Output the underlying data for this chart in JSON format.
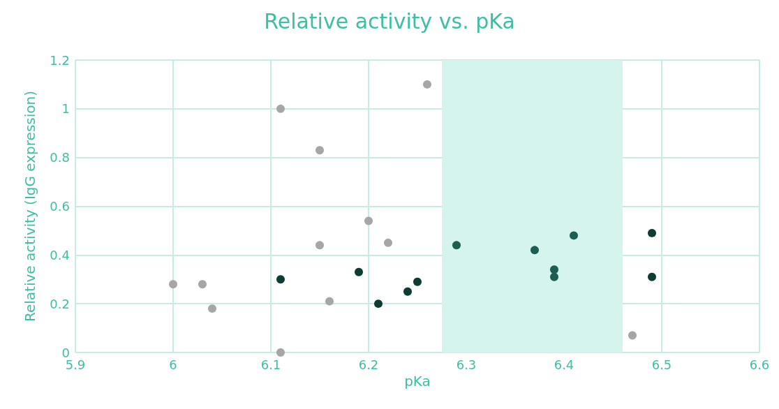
{
  "chart_data": {
    "type": "scatter",
    "title": "Relative activity vs. pKa",
    "xlabel": "pKa",
    "ylabel": "Relative activity (IgG expression)",
    "series": [
      {
        "color": "#a6a6a6",
        "x": [
          6.0,
          6.03,
          6.04,
          6.11,
          6.11,
          6.15,
          6.15,
          6.16,
          6.2,
          6.22,
          6.26,
          6.47
        ],
        "values": [
          0.28,
          0.28,
          0.18,
          1.0,
          0.0,
          0.83,
          0.44,
          0.21,
          0.54,
          0.45,
          1.1,
          0.07
        ]
      },
      {
        "color": "#0e3b33",
        "x": [
          6.11,
          6.19,
          6.21,
          6.24,
          6.25,
          6.49,
          6.49
        ],
        "values": [
          0.3,
          0.33,
          0.2,
          0.25,
          0.29,
          0.49,
          0.31
        ]
      },
      {
        "color": "#1c5e53",
        "x": [
          6.29,
          6.37,
          6.39,
          6.39,
          6.41
        ],
        "values": [
          0.44,
          0.42,
          0.34,
          0.31,
          0.48
        ]
      }
    ],
    "xlim": [
      5.9,
      6.6
    ],
    "xticks": [
      5.9,
      6,
      6.1,
      6.2,
      6.3,
      6.4,
      6.5,
      6.6
    ],
    "ylim": [
      0,
      1.2
    ],
    "yticks": [
      0,
      0.2,
      0.4,
      0.6,
      0.8,
      1,
      1.2
    ],
    "bands": [
      {
        "axis": "x",
        "from": 6.275,
        "to": 6.46,
        "color": "#d5f4ee"
      }
    ],
    "grid": true,
    "marker": "circle"
  }
}
